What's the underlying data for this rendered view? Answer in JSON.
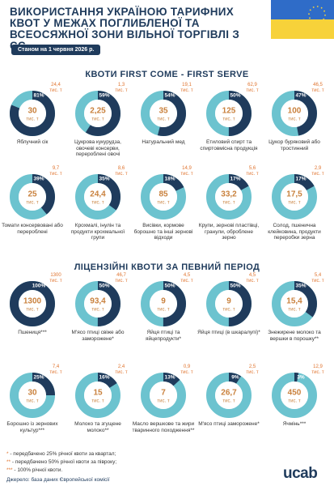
{
  "header": {
    "title": "ВИКОРИСТАННЯ УКРАЇНОЮ ТАРИФНИХ КВОТ У МЕЖАХ ПОГЛИБЛЕНОЇ ТА ВСЕОСЯЖНОЇ ЗОНИ ВІЛЬНОЇ ТОРГІВЛІ З ЄС",
    "date": "Станом на 1 червня 2026 р."
  },
  "unit": "тис. т",
  "sections": [
    {
      "title": "КВОТИ FIRST COME - FIRST SERVE",
      "items": [
        {
          "percent": 81,
          "percent_label": "81%",
          "quota": "30",
          "used": "24,4",
          "label": "Яблучний сік"
        },
        {
          "percent": 59,
          "percent_label": "59%",
          "quota": "2,25",
          "used": "1,3",
          "label": "Цукрова кукурудза, овочеві консерви, перероблені овочі"
        },
        {
          "percent": 54,
          "percent_label": "54%",
          "quota": "35",
          "used": "19,1",
          "label": "Натуральний мед"
        },
        {
          "percent": 50,
          "percent_label": "50%",
          "quota": "125",
          "used": "62,9",
          "label": "Етиловий спирт та спиртовмісна продукція"
        },
        {
          "percent": 47,
          "percent_label": "47%",
          "quota": "100",
          "used": "46,5",
          "label": "Цукор буряковий або тростинний"
        },
        {
          "percent": 39,
          "percent_label": "39%",
          "quota": "25",
          "used": "9,7",
          "label": "Томати консервовані або перероблені"
        },
        {
          "percent": 35,
          "percent_label": "35%",
          "quota": "24,4",
          "used": "8,6",
          "label": "Крохмалі, інулін та продукти крохмальної групи"
        },
        {
          "percent": 18,
          "percent_label": "18%",
          "quota": "85",
          "used": "14,9",
          "label": "Висівки, кормове борошно та інші зернові відходи"
        },
        {
          "percent": 17,
          "percent_label": "17%",
          "quota": "33,2",
          "used": "5,6",
          "label": "Крупи, зернові пластівці, гранули, оброблене зерно"
        },
        {
          "percent": 17,
          "percent_label": "17%",
          "quota": "17,5",
          "used": "2,9",
          "label": "Солод, пшенична клейковина, продукти переробки зерна"
        }
      ]
    },
    {
      "title": "ЛІЦЕНЗІЙНІ КВОТИ ЗА ПЕВНИЙ ПЕРІОД",
      "items": [
        {
          "percent": 100,
          "percent_label": "100%",
          "quota": "1300",
          "used": "1300",
          "label": "Пшениця***"
        },
        {
          "percent": 50,
          "percent_label": "50%",
          "quota": "93,4",
          "used": "46,7",
          "label": "М'ясо птиці свіже або заморожене*"
        },
        {
          "percent": 50,
          "percent_label": "50%",
          "quota": "9",
          "used": "4,5",
          "label": "Яйця птиці та яйцепродукти*"
        },
        {
          "percent": 50,
          "percent_label": "50%",
          "quota": "9",
          "used": "4,5",
          "label": "Яйця птиці (в шкаралупі)*"
        },
        {
          "percent": 35,
          "percent_label": "35%",
          "quota": "15,4",
          "used": "5,4",
          "label": "Знежирене молоко та вершки в порошку**"
        },
        {
          "percent": 25,
          "percent_label": "25%",
          "quota": "30",
          "used": "7,4",
          "label": "Борошно із зернових культур***"
        },
        {
          "percent": 16,
          "percent_label": "16%",
          "quota": "15",
          "used": "2,4",
          "label": "Молоко та згущене молоко**"
        },
        {
          "percent": 13,
          "percent_label": "13%",
          "quota": "7",
          "used": "0,9",
          "label": "Масло вершкове та жири тваринного походження**"
        },
        {
          "percent": 9,
          "percent_label": "9%",
          "quota": "26,7",
          "used": "2,5",
          "label": "М'ясо птиці заморожене*"
        },
        {
          "percent": 3,
          "percent_label": "3%",
          "quota": "450",
          "used": "12,9",
          "label": "Ячмінь***"
        }
      ]
    }
  ],
  "footnotes": [
    {
      "mark": "*",
      "text": " - передбачено 25% річної квоти за квартал;"
    },
    {
      "mark": "**",
      "text": " - передбачено 50% річної квоти за півроку;"
    },
    {
      "mark": "***",
      "text": " - 100% річної квоти."
    }
  ],
  "source": "Джерело: база даних Європейської комісії",
  "logo": "ucab"
}
